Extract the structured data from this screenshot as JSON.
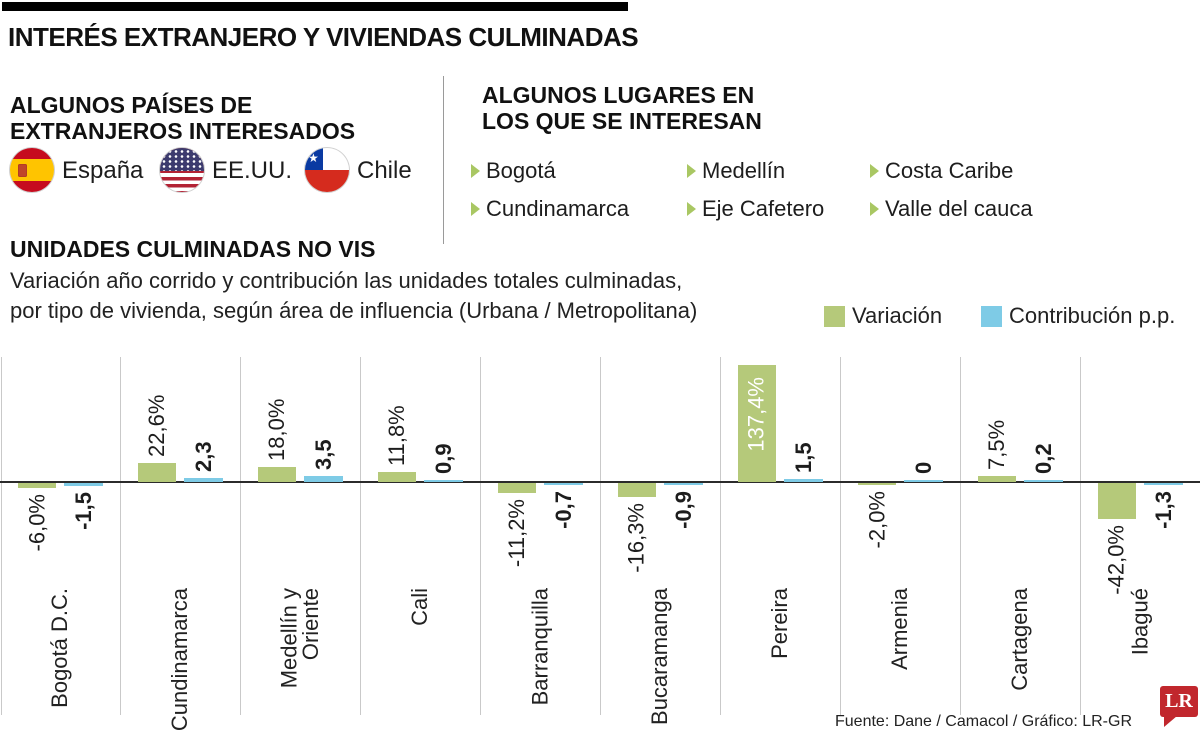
{
  "header": {
    "title": "INTERÉS EXTRANJERO Y VIVIENDAS CULMINADAS"
  },
  "countries_section": {
    "heading_line1": "ALGUNOS PAÍSES DE",
    "heading_line2": "EXTRANJEROS INTERESADOS",
    "items": [
      {
        "name": "España",
        "flag_icon": "spain-flag"
      },
      {
        "name": "EE.UU.",
        "flag_icon": "usa-flag"
      },
      {
        "name": "Chile",
        "flag_icon": "chile-flag"
      }
    ]
  },
  "places_section": {
    "heading_line1": "ALGUNOS LUGARES EN",
    "heading_line2": "LOS QUE SE INTERESAN",
    "bullet_color": "#a9c763",
    "items": [
      "Bogotá",
      "Medellín",
      "Costa Caribe",
      "Cundinamarca",
      "Eje Cafetero",
      "Valle del cauca"
    ]
  },
  "chart_section": {
    "heading": "UNIDADES CULMINADAS NO VIS",
    "subtitle_line1": "Variación año corrido y contribución las unidades totales culminadas,",
    "subtitle_line2": "por tipo de vivienda, según área de influencia (Urbana / Metropolitana)",
    "legend": [
      {
        "label": "Variación",
        "color": "#b5c97a"
      },
      {
        "label": "Contribución p.p.",
        "color": "#7ecbe6"
      }
    ]
  },
  "chart_data": {
    "type": "bar",
    "categories": [
      "Bogotá D.C.",
      "Cundinamarca",
      "Medellín y Oriente",
      "Cali",
      "Barranquilla",
      "Bucaramanga",
      "Pereira",
      "Armenia",
      "Cartagena",
      "Ibagué"
    ],
    "categories_display": [
      [
        "Bogotá D.C."
      ],
      [
        "Cundinamarca"
      ],
      [
        "Medellín y",
        "Oriente"
      ],
      [
        "Cali"
      ],
      [
        "Barranquilla"
      ],
      [
        "Bucaramanga"
      ],
      [
        "Pereira"
      ],
      [
        "Armenia"
      ],
      [
        "Cartagena"
      ],
      [
        "Ibagué"
      ]
    ],
    "series": [
      {
        "name": "Variación",
        "unit": "%",
        "color": "#b5c97a",
        "values": [
          -6.0,
          22.6,
          18.0,
          11.8,
          -11.2,
          -16.3,
          137.4,
          -2.0,
          7.5,
          -42.0
        ],
        "labels": [
          "-6,0%",
          "22,6%",
          "18,0%",
          "11,8%",
          "-11,2%",
          "-16,3%",
          "137,4%",
          "-2,0%",
          "7,5%",
          "-42,0%"
        ]
      },
      {
        "name": "Contribución p.p.",
        "unit": "p.p.",
        "color": "#7ecbe6",
        "values": [
          -1.5,
          2.3,
          3.5,
          0.9,
          -0.7,
          -0.9,
          1.5,
          0,
          0.2,
          -1.3
        ],
        "labels": [
          "-1,5",
          "2,3",
          "3,5",
          "0,9",
          "-0,7",
          "-0,9",
          "1,5",
          "0",
          "0,2",
          "-1,3"
        ]
      }
    ],
    "ylim": [
      -42,
      137.4
    ],
    "grid": "vertical-category-separators",
    "legend_position": "top-right"
  },
  "footer": {
    "source": "Fuente: Dane / Camacol / Gráfico: LR-GR",
    "logo_text": "LR",
    "logo_color": "#c1272d"
  }
}
